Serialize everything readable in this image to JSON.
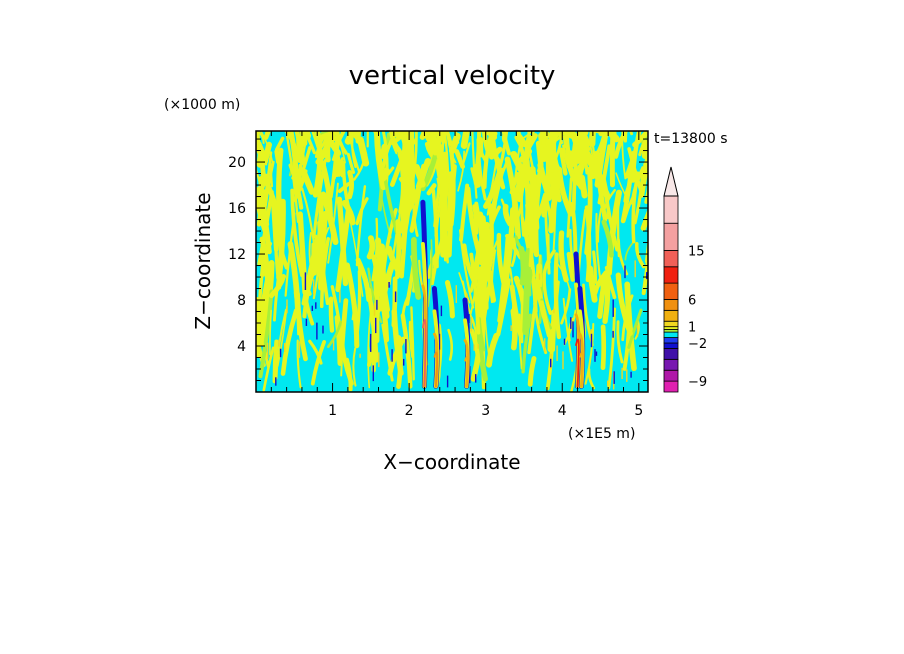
{
  "chart_data": {
    "type": "heatmap",
    "title": "vertical velocity",
    "xlabel": "X−coordinate",
    "ylabel": "Z−coordinate",
    "x_unit": "(×1E5 m)",
    "y_unit": "(×1000 m)",
    "time_label": "t=13800 s",
    "xlim": [
      0,
      5.12
    ],
    "ylim": [
      0,
      22.7
    ],
    "x_ticks": [
      {
        "value": 1,
        "label": "1"
      },
      {
        "value": 2,
        "label": "2"
      },
      {
        "value": 3,
        "label": "3"
      },
      {
        "value": 4,
        "label": "4"
      },
      {
        "value": 5,
        "label": "5"
      }
    ],
    "y_ticks": [
      {
        "value": 4,
        "label": "4"
      },
      {
        "value": 8,
        "label": "8"
      },
      {
        "value": 12,
        "label": "12"
      },
      {
        "value": 16,
        "label": "16"
      },
      {
        "value": 20,
        "label": "20"
      }
    ],
    "colorbar": {
      "levels": [
        {
          "lo": -11,
          "hi": -9,
          "color": "#e020b0"
        },
        {
          "lo": -9,
          "hi": -7,
          "color": "#b018a8"
        },
        {
          "lo": -7,
          "hi": -5,
          "color": "#7818b0"
        },
        {
          "lo": -5,
          "hi": -3,
          "color": "#4010a8"
        },
        {
          "lo": -3,
          "hi": -2,
          "color": "#1010d0"
        },
        {
          "lo": -2,
          "hi": -1,
          "color": "#1e3cf0"
        },
        {
          "lo": -1,
          "hi": 0,
          "color": "#00e8f0"
        },
        {
          "lo": 0,
          "hi": 0.5,
          "color": "#a8f038"
        },
        {
          "lo": 0.5,
          "hi": 1,
          "color": "#e6f520"
        },
        {
          "lo": 1,
          "hi": 2,
          "color": "#f0d820"
        },
        {
          "lo": 2,
          "hi": 4,
          "color": "#f0b010"
        },
        {
          "lo": 4,
          "hi": 6,
          "color": "#f09010"
        },
        {
          "lo": 6,
          "hi": 9,
          "color": "#f06010"
        },
        {
          "lo": 9,
          "hi": 12,
          "color": "#f02010"
        },
        {
          "lo": 12,
          "hi": 15,
          "color": "#f06058"
        },
        {
          "lo": 15,
          "hi": 20,
          "color": "#f4a0a0"
        },
        {
          "lo": 20,
          "hi": 25,
          "color": "#f8c8c8"
        }
      ],
      "tick_labels": [
        {
          "value": 15,
          "label": "15"
        },
        {
          "value": 6,
          "label": "6"
        },
        {
          "value": 1,
          "label": "1"
        },
        {
          "value": -2,
          "label": "−2"
        },
        {
          "value": -9,
          "label": "−9"
        }
      ],
      "extend": "max"
    },
    "field_description": {
      "background_color": "#00e8f0",
      "streak_color": "#e6f520",
      "updraft_cores": [
        {
          "x": 2.2,
          "z_top": 16.5,
          "peak": 12
        },
        {
          "x": 2.35,
          "z_top": 9,
          "peak": 4
        },
        {
          "x": 2.75,
          "z_top": 8,
          "peak": 3
        },
        {
          "x": 4.2,
          "z_top": 12,
          "peak": 9
        },
        {
          "x": 4.25,
          "z_top": 9,
          "peak": 3
        }
      ]
    }
  }
}
